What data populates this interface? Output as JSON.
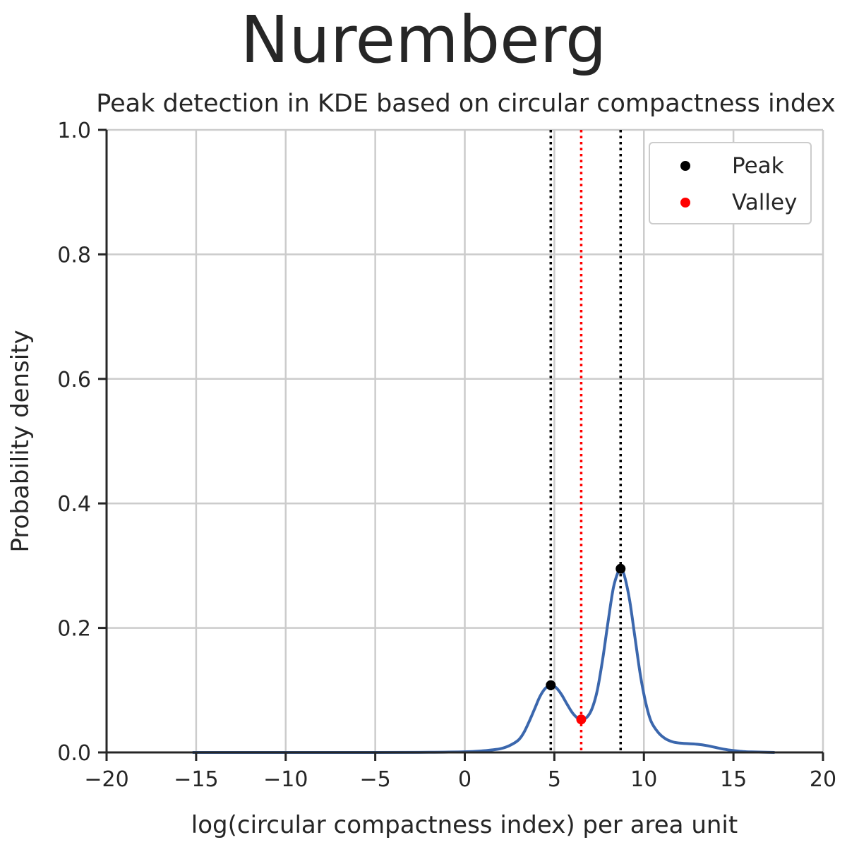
{
  "suptitle": "Nuremberg",
  "chart_data": {
    "type": "line",
    "title": "Peak detection in KDE based on circular compactness index",
    "xlabel": "log(circular compactness index) per area unit",
    "ylabel": "Probability density",
    "xlim": [
      -20,
      20
    ],
    "ylim": [
      0,
      1.0
    ],
    "xticks": [
      -20,
      -15,
      -10,
      -5,
      0,
      5,
      10,
      15,
      20
    ],
    "xtick_labels": [
      "−20",
      "−15",
      "−10",
      "−5",
      "0",
      "5",
      "10",
      "15",
      "20"
    ],
    "yticks": [
      0,
      0.2,
      0.4,
      0.6,
      0.8,
      1.0
    ],
    "ytick_labels": [
      "0.0",
      "0.2",
      "0.4",
      "0.6",
      "0.8",
      "1.0"
    ],
    "grid": true,
    "legend_position": "top-right",
    "series": [
      {
        "kind": "kde",
        "color": "#3b67ad",
        "points": [
          [
            -15.2,
            0.0
          ],
          [
            -5,
            0.0
          ],
          [
            -2,
            0.0003
          ],
          [
            0,
            0.001
          ],
          [
            1,
            0.0025
          ],
          [
            1.5,
            0.004
          ],
          [
            2,
            0.006
          ],
          [
            2.5,
            0.011
          ],
          [
            3,
            0.02
          ],
          [
            3.3,
            0.032
          ],
          [
            3.6,
            0.05
          ],
          [
            3.9,
            0.07
          ],
          [
            4.2,
            0.09
          ],
          [
            4.5,
            0.103
          ],
          [
            4.8,
            0.108
          ],
          [
            5.1,
            0.104
          ],
          [
            5.4,
            0.093
          ],
          [
            5.7,
            0.078
          ],
          [
            6.0,
            0.064
          ],
          [
            6.3,
            0.055
          ],
          [
            6.5,
            0.053
          ],
          [
            6.8,
            0.056
          ],
          [
            7.1,
            0.07
          ],
          [
            7.4,
            0.1
          ],
          [
            7.7,
            0.15
          ],
          [
            8.0,
            0.21
          ],
          [
            8.3,
            0.265
          ],
          [
            8.6,
            0.293
          ],
          [
            8.7,
            0.295
          ],
          [
            8.9,
            0.285
          ],
          [
            9.2,
            0.245
          ],
          [
            9.5,
            0.185
          ],
          [
            9.8,
            0.125
          ],
          [
            10.1,
            0.08
          ],
          [
            10.4,
            0.05
          ],
          [
            10.8,
            0.032
          ],
          [
            11.2,
            0.022
          ],
          [
            11.6,
            0.017
          ],
          [
            12.0,
            0.015
          ],
          [
            12.5,
            0.014
          ],
          [
            13.0,
            0.013
          ],
          [
            13.5,
            0.011
          ],
          [
            14.0,
            0.008
          ],
          [
            14.5,
            0.005
          ],
          [
            15.0,
            0.003
          ],
          [
            15.5,
            0.0015
          ],
          [
            16.0,
            0.0008
          ],
          [
            17.3,
            0.0
          ]
        ]
      }
    ],
    "peaks": {
      "name": "Peak",
      "color": "#000000",
      "points": [
        [
          4.8,
          0.108
        ],
        [
          8.7,
          0.295
        ]
      ]
    },
    "valleys": {
      "name": "Valley",
      "color": "#ff0000",
      "points": [
        [
          6.5,
          0.053
        ]
      ]
    }
  }
}
